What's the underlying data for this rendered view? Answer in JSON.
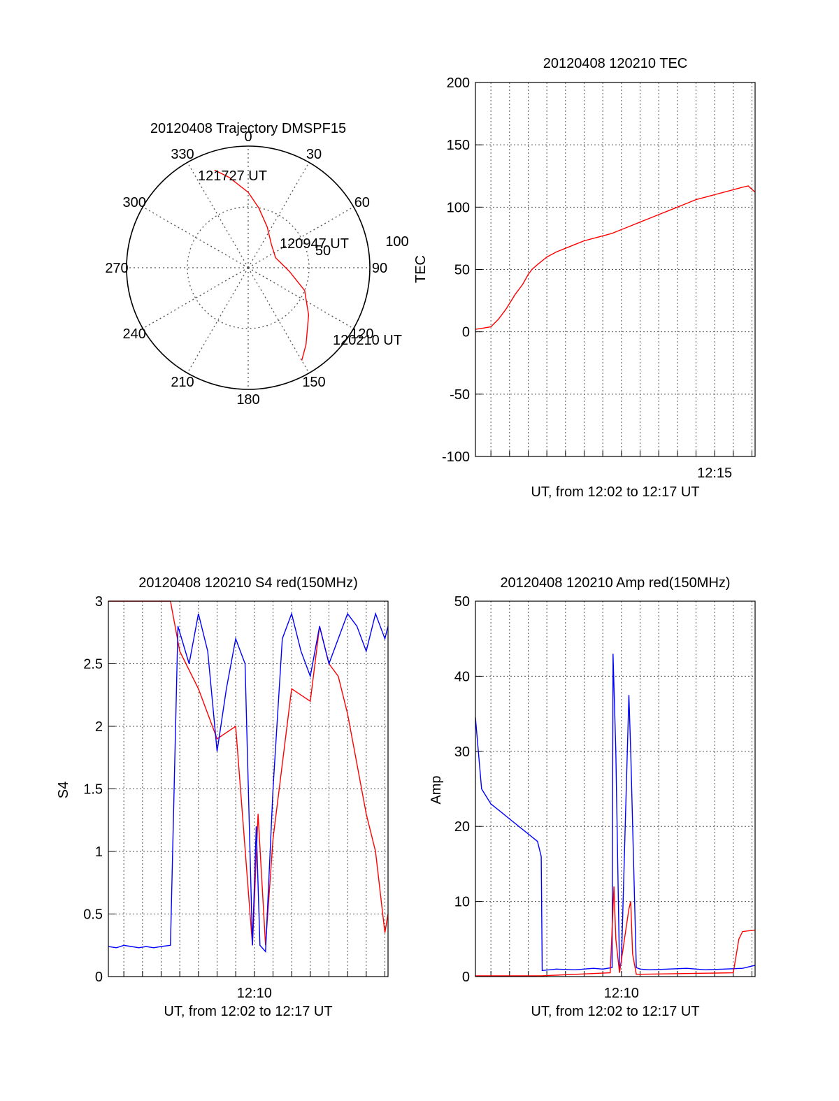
{
  "colors": {
    "red": "#ff0000",
    "blue": "#0000ff",
    "axis": "#000000",
    "grid": "#555555"
  },
  "chart_data": [
    {
      "id": "trajectory",
      "type": "polar",
      "title": "20120408 Trajectory DMSPF15",
      "angle_labels": [
        "0",
        "30",
        "60",
        "90",
        "120",
        "150",
        "180",
        "210",
        "240",
        "270",
        "300",
        "330"
      ],
      "radial_labels": [
        "50",
        "100"
      ],
      "rlim": [
        0,
        100
      ],
      "track": {
        "azimuth": [
          341,
          348,
          360,
          10,
          25,
          45,
          70,
          95,
          112,
          128,
          143,
          150
        ],
        "zenith": [
          85,
          76,
          62,
          50,
          37,
          27,
          24,
          34,
          50,
          63,
          79,
          88
        ]
      },
      "annotations": [
        "121727 UT",
        "120947 UT",
        "120210 UT"
      ],
      "grid": true
    },
    {
      "id": "tec",
      "type": "line",
      "title": "20120408 120210 TEC",
      "xlabel": "UT, from 12:02 to 12:17 UT",
      "ylabel": "TEC",
      "x_unit": "minutes after 12:00 UT",
      "xlim": [
        2.17,
        17.17
      ],
      "ylim": [
        -100,
        200
      ],
      "yticks": [
        "200",
        "150",
        "100",
        "50",
        "0",
        "-50",
        "-100"
      ],
      "xtick_labels": [
        {
          "at": 15,
          "label": "12:15"
        }
      ],
      "grid": true,
      "series": [
        {
          "color": "red",
          "x": [
            2.17,
            2.6,
            3.0,
            3.4,
            3.8,
            4.3,
            4.7,
            5.0,
            5.2,
            5.5,
            6.0,
            6.5,
            7.0,
            7.5,
            8.0,
            8.5,
            9.0,
            9.5,
            10.0,
            10.5,
            11.0,
            11.5,
            12.0,
            12.5,
            13.0,
            13.5,
            14.0,
            14.5,
            15.0,
            15.5,
            16.0,
            16.5,
            16.8,
            17.17
          ],
          "y": [
            2,
            3,
            4,
            10,
            18,
            30,
            38,
            46,
            50,
            54,
            60,
            64,
            67,
            70,
            73,
            75,
            77,
            79,
            82,
            85,
            88,
            91,
            94,
            97,
            100,
            103,
            106,
            108,
            110,
            112,
            114,
            116,
            117,
            112
          ]
        }
      ]
    },
    {
      "id": "s4",
      "type": "line",
      "title": "20120408 120210 S4 red(150MHz)",
      "xlabel": "UT, from 12:02 to 12:17 UT",
      "ylabel": "S4",
      "x_unit": "minutes after 12:00 UT",
      "xlim": [
        2.17,
        17.17
      ],
      "ylim": [
        0,
        3
      ],
      "yticks": [
        "3",
        "2.5",
        "2",
        "1.5",
        "1",
        "0.5",
        "0"
      ],
      "xtick_labels": [
        {
          "at": 10,
          "label": "12:10"
        }
      ],
      "grid": true,
      "series": [
        {
          "color": "red",
          "x": [
            2.17,
            5.5,
            6.0,
            7.0,
            8.0,
            9.0,
            9.9,
            10.2,
            10.6,
            11.0,
            12.0,
            13.0,
            13.5,
            14.0,
            14.5,
            15.0,
            15.5,
            16.0,
            16.5,
            17.0,
            17.17
          ],
          "y": [
            3.0,
            3.0,
            2.6,
            2.3,
            1.9,
            2.0,
            0.25,
            1.3,
            0.25,
            1.1,
            2.3,
            2.2,
            2.8,
            2.5,
            2.4,
            2.1,
            1.7,
            1.3,
            1.0,
            0.35,
            0.5
          ]
        },
        {
          "color": "blue",
          "x": [
            2.17,
            2.6,
            3.0,
            3.4,
            3.8,
            4.2,
            4.6,
            5.0,
            5.5,
            5.9,
            6.5,
            7.0,
            7.5,
            8.0,
            8.5,
            9.0,
            9.5,
            9.9,
            10.1,
            10.3,
            10.6,
            11.0,
            11.5,
            12.0,
            12.5,
            13.0,
            13.5,
            14.0,
            14.5,
            15.0,
            15.5,
            16.0,
            16.5,
            17.0,
            17.17
          ],
          "y": [
            0.24,
            0.23,
            0.25,
            0.24,
            0.23,
            0.24,
            0.23,
            0.24,
            0.25,
            2.8,
            2.5,
            2.9,
            2.6,
            1.8,
            2.3,
            2.7,
            2.5,
            0.25,
            1.2,
            0.25,
            0.2,
            1.5,
            2.7,
            2.9,
            2.6,
            2.4,
            2.8,
            2.5,
            2.7,
            2.9,
            2.8,
            2.6,
            2.9,
            2.7,
            2.8
          ]
        }
      ]
    },
    {
      "id": "amp",
      "type": "line",
      "title": "20120408 120210 Amp red(150MHz)",
      "xlabel": "UT, from 12:02 to 12:17 UT",
      "ylabel": "Amp",
      "x_unit": "minutes after 12:00 UT",
      "xlim": [
        2.17,
        17.17
      ],
      "ylim": [
        0,
        50
      ],
      "yticks": [
        "50",
        "40",
        "30",
        "20",
        "10",
        "0"
      ],
      "xtick_labels": [
        {
          "at": 10,
          "label": "12:10"
        }
      ],
      "grid": true,
      "series": [
        {
          "color": "blue",
          "x": [
            2.17,
            2.5,
            3.0,
            3.5,
            4.0,
            4.5,
            5.0,
            5.5,
            5.7,
            5.75,
            6.5,
            7.5,
            8.5,
            9.0,
            9.5,
            9.55,
            9.7,
            9.9,
            10.0,
            10.4,
            10.5,
            10.8,
            11.0,
            11.5,
            12.5,
            13.5,
            14.5,
            15.5,
            16.5,
            17.17
          ],
          "y": [
            34.5,
            25.0,
            23.0,
            22.0,
            21.0,
            20.0,
            19.0,
            18.0,
            16.0,
            0.8,
            1.0,
            0.9,
            1.1,
            1.0,
            1.2,
            43.0,
            30.0,
            1.0,
            2.0,
            37.5,
            30.0,
            1.2,
            1.0,
            0.9,
            1.0,
            1.1,
            0.9,
            1.0,
            1.1,
            1.5
          ]
        },
        {
          "color": "red",
          "x": [
            2.17,
            5.7,
            9.4,
            9.6,
            9.7,
            9.9,
            10.4,
            10.5,
            10.6,
            10.8,
            16.0,
            16.3,
            16.5,
            17.17
          ],
          "y": [
            0.1,
            0.1,
            0.5,
            12.0,
            5.0,
            0.5,
            9.0,
            10.0,
            3.0,
            0.3,
            0.5,
            5.0,
            6.0,
            6.2
          ]
        }
      ]
    }
  ]
}
